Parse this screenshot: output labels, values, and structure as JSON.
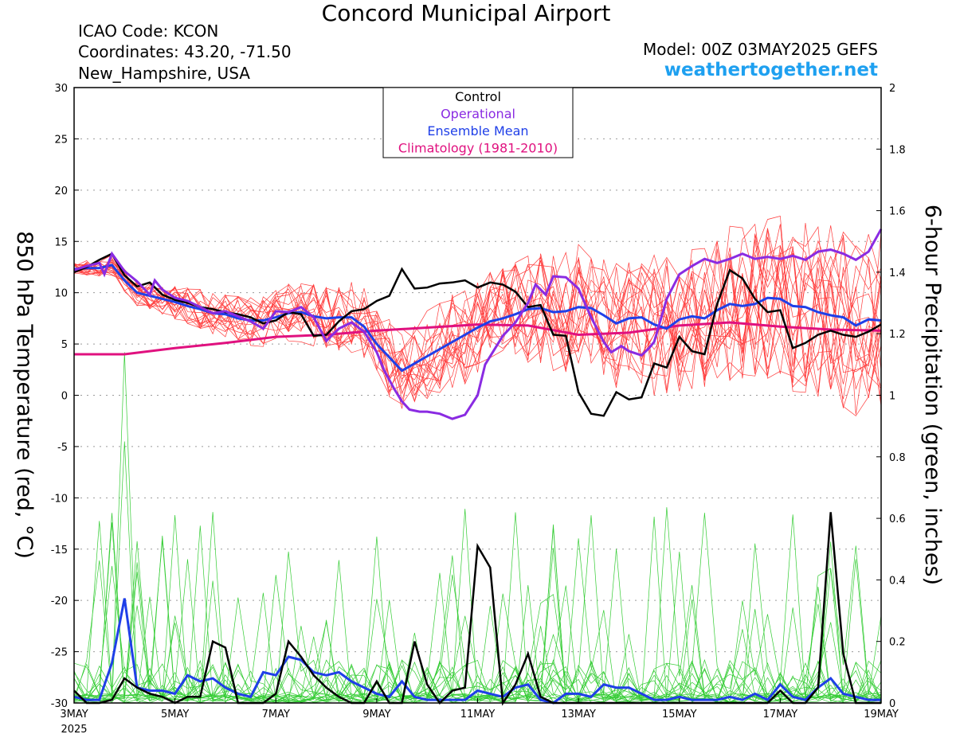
{
  "header": {
    "title": "Concord Municipal Airport",
    "icao": "ICAO Code: KCON",
    "coords": "Coordinates: 43.20, -71.50",
    "region": "New_Hampshire, USA",
    "model": "Model: 00Z 03MAY2025 GEFS",
    "site": "weathertogether.net"
  },
  "chart_data": {
    "type": "line",
    "x_unit": "days since 00Z 3MAY 2025",
    "xlim": [
      0,
      16
    ],
    "x_ticks": [
      {
        "x": 0,
        "label": "3MAY",
        "sub": "2025"
      },
      {
        "x": 2,
        "label": "5MAY"
      },
      {
        "x": 4,
        "label": "7MAY"
      },
      {
        "x": 6,
        "label": "9MAY"
      },
      {
        "x": 8,
        "label": "11MAY"
      },
      {
        "x": 10,
        "label": "13MAY"
      },
      {
        "x": 12,
        "label": "15MAY"
      },
      {
        "x": 14,
        "label": "17MAY"
      },
      {
        "x": 16,
        "label": "19MAY"
      }
    ],
    "ylabel_left": "850 hPa Temperature (red, °C)",
    "ylabel_right": "6-hour Precipitation (green, inches)",
    "ylim_left": [
      -30,
      30
    ],
    "ylim_right": [
      0,
      2
    ],
    "yticks_left": [
      "30",
      "25",
      "20",
      "15",
      "10",
      "5",
      "0",
      "-5",
      "-10",
      "-15",
      "-20",
      "-25",
      "-30"
    ],
    "yticks_right": [
      "2",
      "1.8",
      "1.6",
      "1.4",
      "1.2",
      "1",
      "0.8",
      "0.6",
      "0.4",
      "0.2",
      "0"
    ],
    "grid": true,
    "legend": {
      "position": "top-center",
      "entries": [
        {
          "label": "Control",
          "color": "#000000"
        },
        {
          "label": "Operational",
          "color": "#8a2be2"
        },
        {
          "label": "Ensemble Mean",
          "color": "#1f3fe8"
        },
        {
          "label": "Climatology (1981-2010)",
          "color": "#e0117f"
        }
      ]
    },
    "colors": {
      "members_temp": "#ff3b3b",
      "members_precip": "#33cc33"
    },
    "temperature": {
      "operational": [
        [
          0,
          12.2
        ],
        [
          0.25,
          12.6
        ],
        [
          0.5,
          12.9
        ],
        [
          0.6,
          11.8
        ],
        [
          0.75,
          13.8
        ],
        [
          1,
          12.1
        ],
        [
          1.25,
          11.1
        ],
        [
          1.5,
          9.8
        ],
        [
          1.6,
          11.2
        ],
        [
          1.75,
          10.3
        ],
        [
          2,
          9.5
        ],
        [
          2.25,
          9.2
        ],
        [
          2.5,
          8.6
        ],
        [
          2.75,
          8.0
        ],
        [
          3,
          8.2
        ],
        [
          3.25,
          7.7
        ],
        [
          3.5,
          7.2
        ],
        [
          3.75,
          6.5
        ],
        [
          4,
          8.2
        ],
        [
          4.25,
          8.1
        ],
        [
          4.5,
          8.6
        ],
        [
          4.75,
          7.6
        ],
        [
          5,
          5.3
        ],
        [
          5.25,
          6.5
        ],
        [
          5.5,
          7.1
        ],
        [
          5.75,
          6.2
        ],
        [
          6,
          4.2
        ],
        [
          6.15,
          2.4
        ],
        [
          6.35,
          0.6
        ],
        [
          6.5,
          -0.6
        ],
        [
          6.65,
          -1.4
        ],
        [
          6.85,
          -1.6
        ],
        [
          7,
          -1.6
        ],
        [
          7.25,
          -1.8
        ],
        [
          7.5,
          -2.3
        ],
        [
          7.75,
          -1.9
        ],
        [
          8,
          0.0
        ],
        [
          8.15,
          3.0
        ],
        [
          8.35,
          4.6
        ],
        [
          8.5,
          5.8
        ],
        [
          8.75,
          7.1
        ],
        [
          9,
          9.0
        ],
        [
          9.15,
          10.8
        ],
        [
          9.35,
          9.8
        ],
        [
          9.5,
          11.6
        ],
        [
          9.75,
          11.5
        ],
        [
          10,
          10.4
        ],
        [
          10.25,
          7.6
        ],
        [
          10.5,
          5.2
        ],
        [
          10.65,
          4.2
        ],
        [
          10.85,
          4.8
        ],
        [
          11,
          4.3
        ],
        [
          11.25,
          3.9
        ],
        [
          11.4,
          4.6
        ],
        [
          11.5,
          5.2
        ],
        [
          11.75,
          9.4
        ],
        [
          12,
          11.8
        ],
        [
          12.25,
          12.6
        ],
        [
          12.5,
          13.3
        ],
        [
          12.75,
          12.9
        ],
        [
          13,
          13.3
        ],
        [
          13.25,
          13.8
        ],
        [
          13.5,
          13.3
        ],
        [
          13.75,
          13.5
        ],
        [
          14,
          13.3
        ],
        [
          14.25,
          13.6
        ],
        [
          14.5,
          13.2
        ],
        [
          14.75,
          14.0
        ],
        [
          15,
          14.2
        ],
        [
          15.25,
          13.8
        ],
        [
          15.5,
          13.2
        ],
        [
          15.75,
          14.0
        ],
        [
          16,
          16.2
        ]
      ],
      "control": [
        [
          0,
          12.0
        ],
        [
          0.25,
          12.5
        ],
        [
          0.5,
          13.2
        ],
        [
          0.75,
          13.8
        ],
        [
          1,
          11.7
        ],
        [
          1.25,
          10.6
        ],
        [
          1.5,
          11.0
        ],
        [
          1.75,
          9.8
        ],
        [
          2,
          9.3
        ],
        [
          2.25,
          9.0
        ],
        [
          2.5,
          8.6
        ],
        [
          2.75,
          8.4
        ],
        [
          3,
          8.1
        ],
        [
          3.25,
          7.9
        ],
        [
          3.5,
          7.6
        ],
        [
          3.75,
          7.0
        ],
        [
          4,
          7.3
        ],
        [
          4.25,
          8.1
        ],
        [
          4.5,
          7.9
        ],
        [
          4.75,
          5.8
        ],
        [
          5,
          5.9
        ],
        [
          5.25,
          7.2
        ],
        [
          5.5,
          8.2
        ],
        [
          5.75,
          8.4
        ],
        [
          6,
          9.2
        ],
        [
          6.25,
          9.7
        ],
        [
          6.5,
          12.3
        ],
        [
          6.75,
          10.4
        ],
        [
          7,
          10.5
        ],
        [
          7.25,
          10.9
        ],
        [
          7.5,
          11.0
        ],
        [
          7.75,
          11.2
        ],
        [
          8,
          10.5
        ],
        [
          8.25,
          11.0
        ],
        [
          8.5,
          10.8
        ],
        [
          8.75,
          10.1
        ],
        [
          9,
          8.6
        ],
        [
          9.25,
          8.8
        ],
        [
          9.5,
          5.9
        ],
        [
          9.75,
          5.8
        ],
        [
          10,
          0.3
        ],
        [
          10.25,
          -1.8
        ],
        [
          10.5,
          -2.0
        ],
        [
          10.75,
          0.3
        ],
        [
          11,
          -0.4
        ],
        [
          11.25,
          -0.2
        ],
        [
          11.5,
          3.1
        ],
        [
          11.75,
          2.7
        ],
        [
          12,
          5.7
        ],
        [
          12.25,
          4.3
        ],
        [
          12.5,
          4.0
        ],
        [
          12.75,
          8.9
        ],
        [
          13,
          12.2
        ],
        [
          13.25,
          11.4
        ],
        [
          13.5,
          9.4
        ],
        [
          13.75,
          8.1
        ],
        [
          14,
          8.3
        ],
        [
          14.25,
          4.6
        ],
        [
          14.5,
          5.1
        ],
        [
          14.75,
          5.9
        ],
        [
          15,
          6.3
        ],
        [
          15.25,
          5.9
        ],
        [
          15.5,
          5.7
        ],
        [
          15.75,
          6.2
        ],
        [
          16,
          6.9
        ]
      ],
      "ensemble_mean": [
        [
          0,
          12.3
        ],
        [
          0.25,
          12.4
        ],
        [
          0.5,
          12.4
        ],
        [
          0.75,
          12.7
        ],
        [
          1,
          11.2
        ],
        [
          1.25,
          10.0
        ],
        [
          1.5,
          9.7
        ],
        [
          1.75,
          9.4
        ],
        [
          2,
          9.1
        ],
        [
          2.25,
          8.7
        ],
        [
          2.5,
          8.4
        ],
        [
          2.75,
          8.0
        ],
        [
          3,
          7.9
        ],
        [
          3.25,
          7.5
        ],
        [
          3.5,
          7.3
        ],
        [
          3.75,
          7.3
        ],
        [
          4,
          7.6
        ],
        [
          4.25,
          8.0
        ],
        [
          4.5,
          8.1
        ],
        [
          4.75,
          7.7
        ],
        [
          5,
          7.5
        ],
        [
          5.25,
          7.6
        ],
        [
          5.5,
          7.6
        ],
        [
          5.75,
          6.7
        ],
        [
          6,
          5.0
        ],
        [
          6.25,
          3.7
        ],
        [
          6.5,
          2.4
        ],
        [
          6.75,
          3.1
        ],
        [
          7,
          3.8
        ],
        [
          7.25,
          4.5
        ],
        [
          7.5,
          5.2
        ],
        [
          7.75,
          5.9
        ],
        [
          8,
          6.6
        ],
        [
          8.25,
          7.2
        ],
        [
          8.5,
          7.5
        ],
        [
          8.75,
          7.9
        ],
        [
          9,
          8.4
        ],
        [
          9.25,
          8.5
        ],
        [
          9.5,
          8.1
        ],
        [
          9.75,
          8.2
        ],
        [
          10,
          8.6
        ],
        [
          10.25,
          8.5
        ],
        [
          10.5,
          7.8
        ],
        [
          10.75,
          7.0
        ],
        [
          11,
          7.5
        ],
        [
          11.25,
          7.6
        ],
        [
          11.5,
          6.9
        ],
        [
          11.75,
          6.5
        ],
        [
          12,
          7.4
        ],
        [
          12.25,
          7.7
        ],
        [
          12.5,
          7.5
        ],
        [
          12.75,
          8.3
        ],
        [
          13,
          8.9
        ],
        [
          13.25,
          8.7
        ],
        [
          13.5,
          8.9
        ],
        [
          13.75,
          9.5
        ],
        [
          14,
          9.4
        ],
        [
          14.25,
          8.7
        ],
        [
          14.5,
          8.6
        ],
        [
          14.75,
          8.1
        ],
        [
          15,
          7.8
        ],
        [
          15.25,
          7.6
        ],
        [
          15.5,
          6.8
        ],
        [
          15.75,
          7.4
        ],
        [
          16,
          7.3
        ]
      ],
      "climatology": [
        [
          0,
          4.0
        ],
        [
          1,
          4.0
        ],
        [
          2,
          4.6
        ],
        [
          3,
          5.1
        ],
        [
          4,
          5.7
        ],
        [
          5,
          5.9
        ],
        [
          6,
          6.3
        ],
        [
          7,
          6.6
        ],
        [
          8,
          6.9
        ],
        [
          9,
          6.8
        ],
        [
          10,
          5.9
        ],
        [
          11,
          6.1
        ],
        [
          12,
          6.8
        ],
        [
          13,
          7.1
        ],
        [
          14,
          6.7
        ],
        [
          15,
          6.4
        ],
        [
          16,
          6.3
        ]
      ]
    },
    "precipitation": {
      "control": [
        [
          0,
          0.04
        ],
        [
          0.25,
          0
        ],
        [
          0.5,
          0
        ],
        [
          0.75,
          0.01
        ],
        [
          1,
          0.08
        ],
        [
          1.25,
          0.05
        ],
        [
          1.5,
          0.03
        ],
        [
          1.75,
          0.02
        ],
        [
          2,
          0
        ],
        [
          2.25,
          0.02
        ],
        [
          2.5,
          0.02
        ],
        [
          2.75,
          0.2
        ],
        [
          3,
          0.18
        ],
        [
          3.25,
          0
        ],
        [
          3.5,
          0
        ],
        [
          3.75,
          0
        ],
        [
          4,
          0.03
        ],
        [
          4.25,
          0.2
        ],
        [
          4.5,
          0.15
        ],
        [
          4.75,
          0.09
        ],
        [
          5,
          0.05
        ],
        [
          5.25,
          0.02
        ],
        [
          5.5,
          0
        ],
        [
          5.75,
          0
        ],
        [
          6,
          0.07
        ],
        [
          6.25,
          0
        ],
        [
          6.5,
          0
        ],
        [
          6.75,
          0.2
        ],
        [
          7,
          0.06
        ],
        [
          7.25,
          0
        ],
        [
          7.5,
          0.04
        ],
        [
          7.75,
          0.05
        ],
        [
          8,
          0.51
        ],
        [
          8.25,
          0.44
        ],
        [
          8.5,
          0
        ],
        [
          8.75,
          0.06
        ],
        [
          9,
          0.16
        ],
        [
          9.25,
          0.02
        ],
        [
          9.5,
          0
        ],
        [
          9.75,
          0
        ],
        [
          10,
          0
        ],
        [
          10.25,
          0
        ],
        [
          10.5,
          0
        ],
        [
          10.75,
          0
        ],
        [
          11,
          0
        ],
        [
          11.25,
          0
        ],
        [
          11.5,
          0
        ],
        [
          11.75,
          0
        ],
        [
          12,
          0
        ],
        [
          12.25,
          0
        ],
        [
          12.5,
          0
        ],
        [
          12.75,
          0
        ],
        [
          13,
          0
        ],
        [
          13.25,
          0
        ],
        [
          13.5,
          0
        ],
        [
          13.75,
          0
        ],
        [
          14,
          0.04
        ],
        [
          14.25,
          0
        ],
        [
          14.5,
          0
        ],
        [
          14.75,
          0.05
        ],
        [
          15,
          0.62
        ],
        [
          15.25,
          0.16
        ],
        [
          15.5,
          0
        ],
        [
          15.75,
          0
        ],
        [
          16,
          0
        ]
      ],
      "ensemble_mean": [
        [
          0,
          0.02
        ],
        [
          0.25,
          0.01
        ],
        [
          0.5,
          0.01
        ],
        [
          0.75,
          0.13
        ],
        [
          1,
          0.34
        ],
        [
          1.25,
          0.05
        ],
        [
          1.5,
          0.04
        ],
        [
          1.75,
          0.04
        ],
        [
          2,
          0.03
        ],
        [
          2.25,
          0.09
        ],
        [
          2.5,
          0.07
        ],
        [
          2.75,
          0.08
        ],
        [
          3,
          0.05
        ],
        [
          3.25,
          0.03
        ],
        [
          3.5,
          0.02
        ],
        [
          3.75,
          0.1
        ],
        [
          4,
          0.09
        ],
        [
          4.25,
          0.15
        ],
        [
          4.5,
          0.14
        ],
        [
          4.75,
          0.1
        ],
        [
          5,
          0.09
        ],
        [
          5.25,
          0.1
        ],
        [
          5.5,
          0.07
        ],
        [
          5.75,
          0.05
        ],
        [
          6,
          0.03
        ],
        [
          6.25,
          0.02
        ],
        [
          6.5,
          0.07
        ],
        [
          6.75,
          0.02
        ],
        [
          7,
          0.01
        ],
        [
          7.25,
          0.01
        ],
        [
          7.5,
          0.01
        ],
        [
          7.75,
          0.01
        ],
        [
          8,
          0.04
        ],
        [
          8.25,
          0.03
        ],
        [
          8.5,
          0.02
        ],
        [
          8.75,
          0.05
        ],
        [
          9,
          0.06
        ],
        [
          9.25,
          0.01
        ],
        [
          9.5,
          0
        ],
        [
          9.75,
          0.03
        ],
        [
          10,
          0.03
        ],
        [
          10.25,
          0.02
        ],
        [
          10.5,
          0.06
        ],
        [
          10.75,
          0.05
        ],
        [
          11,
          0.05
        ],
        [
          11.25,
          0.03
        ],
        [
          11.5,
          0.01
        ],
        [
          11.75,
          0.01
        ],
        [
          12,
          0.02
        ],
        [
          12.25,
          0.01
        ],
        [
          12.5,
          0.01
        ],
        [
          12.75,
          0.01
        ],
        [
          13,
          0.02
        ],
        [
          13.25,
          0.01
        ],
        [
          13.5,
          0.03
        ],
        [
          13.75,
          0.01
        ],
        [
          14,
          0.06
        ],
        [
          14.25,
          0.02
        ],
        [
          14.5,
          0.01
        ],
        [
          14.75,
          0.05
        ],
        [
          15,
          0.08
        ],
        [
          15.25,
          0.03
        ],
        [
          15.5,
          0.02
        ],
        [
          15.75,
          0.01
        ],
        [
          16,
          0.01
        ]
      ]
    }
  }
}
